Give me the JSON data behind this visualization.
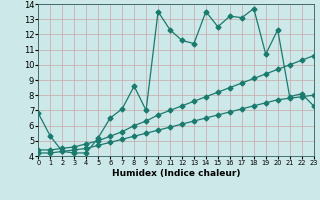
{
  "xlabel": "Humidex (Indice chaleur)",
  "background_color": "#cce8e8",
  "grid_color": "#b0d8d8",
  "line_color": "#1a7a6e",
  "xlim": [
    0,
    23
  ],
  "ylim": [
    4,
    14
  ],
  "xticks": [
    0,
    1,
    2,
    3,
    4,
    5,
    6,
    7,
    8,
    9,
    10,
    11,
    12,
    13,
    14,
    15,
    16,
    17,
    18,
    19,
    20,
    21,
    22,
    23
  ],
  "yticks": [
    4,
    5,
    6,
    7,
    8,
    9,
    10,
    11,
    12,
    13,
    14
  ],
  "line1_x": [
    0,
    1,
    2,
    3,
    4,
    5,
    6,
    7,
    8,
    9,
    10,
    11,
    12,
    13,
    14,
    15,
    16,
    17,
    18,
    19,
    20,
    21,
    22,
    23
  ],
  "line1_y": [
    6.8,
    5.3,
    4.3,
    4.2,
    4.2,
    5.2,
    6.5,
    7.1,
    8.6,
    7.0,
    13.5,
    12.3,
    11.6,
    11.4,
    13.5,
    12.5,
    13.2,
    13.1,
    13.7,
    10.7,
    12.3,
    7.9,
    8.1,
    7.3
  ],
  "line2_x": [
    0,
    1,
    2,
    3,
    4,
    5,
    6,
    7,
    8,
    9,
    10,
    11,
    12,
    13,
    14,
    15,
    16,
    17,
    18,
    19,
    20,
    21,
    22,
    23
  ],
  "line2_y": [
    4.4,
    4.4,
    4.5,
    4.6,
    4.8,
    5.0,
    5.3,
    5.6,
    6.0,
    6.3,
    6.7,
    7.0,
    7.3,
    7.6,
    7.9,
    8.2,
    8.5,
    8.8,
    9.1,
    9.4,
    9.7,
    10.0,
    10.3,
    10.6
  ],
  "line3_x": [
    0,
    1,
    2,
    3,
    4,
    5,
    6,
    7,
    8,
    9,
    10,
    11,
    12,
    13,
    14,
    15,
    16,
    17,
    18,
    19,
    20,
    21,
    22,
    23
  ],
  "line3_y": [
    4.2,
    4.2,
    4.3,
    4.4,
    4.5,
    4.7,
    4.9,
    5.1,
    5.3,
    5.5,
    5.7,
    5.9,
    6.1,
    6.3,
    6.5,
    6.7,
    6.9,
    7.1,
    7.3,
    7.5,
    7.7,
    7.8,
    7.9,
    8.0
  ],
  "markersize": 2.5,
  "linewidth": 0.9
}
